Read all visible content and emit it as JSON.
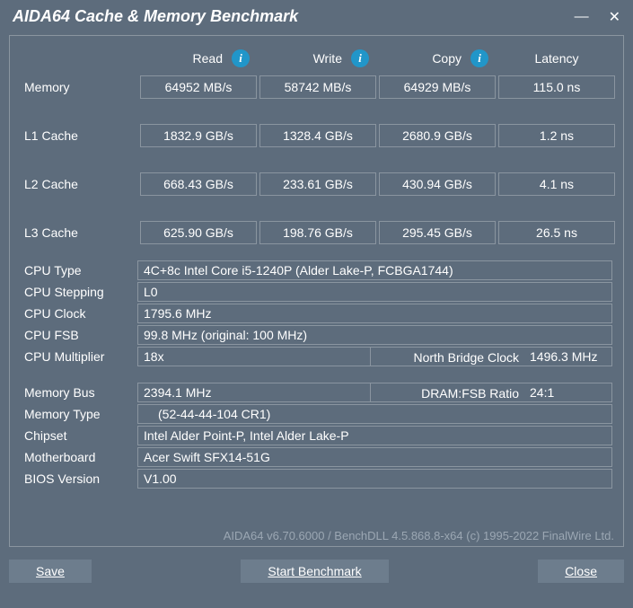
{
  "window": {
    "title": "AIDA64 Cache & Memory Benchmark"
  },
  "headers": {
    "read": "Read",
    "write": "Write",
    "copy": "Copy",
    "latency": "Latency"
  },
  "rows": {
    "memory": {
      "label": "Memory",
      "read": "64952 MB/s",
      "write": "58742 MB/s",
      "copy": "64929 MB/s",
      "latency": "115.0 ns"
    },
    "l1": {
      "label": "L1 Cache",
      "read": "1832.9 GB/s",
      "write": "1328.4 GB/s",
      "copy": "2680.9 GB/s",
      "latency": "1.2 ns"
    },
    "l2": {
      "label": "L2 Cache",
      "read": "668.43 GB/s",
      "write": "233.61 GB/s",
      "copy": "430.94 GB/s",
      "latency": "4.1 ns"
    },
    "l3": {
      "label": "L3 Cache",
      "read": "625.90 GB/s",
      "write": "198.76 GB/s",
      "copy": "295.45 GB/s",
      "latency": "26.5 ns"
    }
  },
  "cpu": {
    "type_label": "CPU Type",
    "type": "4C+8c Intel Core i5-1240P  (Alder Lake-P, FCBGA1744)",
    "stepping_label": "CPU Stepping",
    "stepping": "L0",
    "clock_label": "CPU Clock",
    "clock": "1795.6 MHz",
    "fsb_label": "CPU FSB",
    "fsb": "99.8 MHz  (original: 100 MHz)",
    "mult_label": "CPU Multiplier",
    "mult": "18x",
    "nb_label": "North Bridge Clock",
    "nb": "1496.3 MHz"
  },
  "mem": {
    "bus_label": "Memory Bus",
    "bus": "2394.1 MHz",
    "ratio_label": "DRAM:FSB Ratio",
    "ratio": "24:1",
    "type_label": "Memory Type",
    "type": " (52-44-44-104 CR1)",
    "chipset_label": "Chipset",
    "chipset": "Intel Alder Point-P, Intel Alder Lake-P",
    "mb_label": "Motherboard",
    "mb": "Acer Swift SFX14-51G",
    "bios_label": "BIOS Version",
    "bios": "V1.00"
  },
  "footer": "AIDA64 v6.70.6000 / BenchDLL 4.5.868.8-x64  (c) 1995-2022 FinalWire Ltd.",
  "buttons": {
    "save": "Save",
    "start": "Start Benchmark",
    "close": "Close"
  }
}
